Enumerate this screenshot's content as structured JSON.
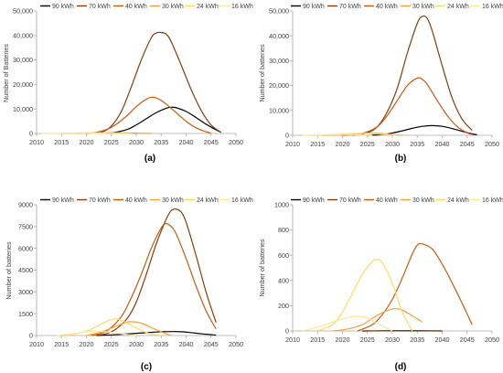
{
  "legend_labels": [
    "90 kWh",
    "70 kWh",
    "40 kWh",
    "30 kWh",
    "24 kWh",
    "16 kWh"
  ],
  "series_colors": [
    "#000000",
    "#843C0C",
    "#C55A11",
    "#F4A13B",
    "#FFD966",
    "#FFE699"
  ],
  "chart_data": [
    {
      "type": "line",
      "panel_label": "(a)",
      "ylabel": "Number of Batteries",
      "xlim": [
        2010,
        2050
      ],
      "ylim": [
        0,
        50000
      ],
      "x_ticks": [
        "2010",
        "2015",
        "2020",
        "2025",
        "2030",
        "2035",
        "2040",
        "2045",
        "2050"
      ],
      "y_ticks": [
        "0",
        "10,000",
        "20,000",
        "30,000",
        "40,000",
        "50,000"
      ],
      "legend_position": "top",
      "series": [
        {
          "name": "90 kWh",
          "x": [
            2020,
            2025,
            2028,
            2030,
            2032,
            2034,
            2036,
            2037,
            2038,
            2040,
            2042,
            2044,
            2046,
            2047
          ],
          "y": [
            0,
            300,
            1500,
            3500,
            6000,
            8500,
            10300,
            10700,
            10500,
            9000,
            6500,
            3800,
            1500,
            500
          ]
        },
        {
          "name": "70 kWh",
          "x": [
            2020,
            2023,
            2025,
            2027,
            2029,
            2031,
            2033,
            2034,
            2035,
            2036,
            2037,
            2039,
            2041,
            2043,
            2045,
            2047
          ],
          "y": [
            0,
            500,
            3000,
            9000,
            19000,
            30000,
            39000,
            41000,
            41200,
            40500,
            37500,
            28000,
            18000,
            9500,
            3500,
            500
          ]
        },
        {
          "name": "40 kWh",
          "x": [
            2018,
            2022,
            2025,
            2028,
            2030,
            2032,
            2033,
            2034,
            2035,
            2036,
            2038,
            2040,
            2042,
            2044,
            2045
          ],
          "y": [
            0,
            500,
            2500,
            7000,
            11000,
            14000,
            14800,
            14500,
            13500,
            12000,
            8500,
            5000,
            2300,
            700,
            200
          ]
        },
        {
          "name": "30 kWh",
          "x": [
            2015,
            2020,
            2023,
            2025,
            2027,
            2029,
            2031,
            2033
          ],
          "y": [
            0,
            100,
            250,
            350,
            300,
            200,
            80,
            0
          ]
        },
        {
          "name": "24 kWh",
          "x": [
            2012,
            2016,
            2019,
            2021,
            2023,
            2026,
            2029
          ],
          "y": [
            0,
            120,
            250,
            300,
            250,
            100,
            0
          ]
        },
        {
          "name": "16 kWh",
          "x": [
            2011,
            2014,
            2017,
            2019,
            2021,
            2024
          ],
          "y": [
            0,
            80,
            150,
            120,
            60,
            0
          ]
        }
      ]
    },
    {
      "type": "line",
      "panel_label": "(b)",
      "ylabel": "Number of batteries",
      "xlim": [
        2010,
        2050
      ],
      "ylim": [
        0,
        50000
      ],
      "x_ticks": [
        "2010",
        "2015",
        "2020",
        "2025",
        "2030",
        "2035",
        "2040",
        "2045",
        "2050"
      ],
      "y_ticks": [
        "0",
        "10,000",
        "20,000",
        "30,000",
        "40,000",
        "50,000"
      ],
      "legend_position": "top",
      "series": [
        {
          "name": "90 kWh",
          "x": [
            2025,
            2028,
            2030,
            2032,
            2034,
            2036,
            2038,
            2040,
            2042,
            2044,
            2046,
            2047
          ],
          "y": [
            0,
            300,
            900,
            1800,
            2800,
            3600,
            3900,
            3600,
            2700,
            1600,
            600,
            200
          ]
        },
        {
          "name": "70 kWh",
          "x": [
            2022,
            2025,
            2027,
            2029,
            2031,
            2033,
            2035,
            2036,
            2037,
            2038,
            2040,
            2042,
            2044,
            2046
          ],
          "y": [
            0,
            1000,
            3500,
            9500,
            19000,
            33000,
            45000,
            47800,
            47000,
            42000,
            28000,
            15000,
            6500,
            2000
          ]
        },
        {
          "name": "40 kWh",
          "x": [
            2020,
            2024,
            2027,
            2029,
            2031,
            2033,
            2035,
            2036,
            2037,
            2039,
            2041,
            2043,
            2045,
            2046
          ],
          "y": [
            0,
            800,
            3500,
            8000,
            14000,
            20000,
            23000,
            22500,
            20500,
            14000,
            8000,
            3500,
            1000,
            400
          ]
        },
        {
          "name": "30 kWh",
          "x": [
            2016,
            2020,
            2024,
            2026,
            2028,
            2030,
            2032
          ],
          "y": [
            0,
            200,
            700,
            900,
            700,
            300,
            0
          ]
        },
        {
          "name": "24 kWh",
          "x": [
            2014,
            2018,
            2022,
            2025,
            2028,
            2031
          ],
          "y": [
            0,
            300,
            700,
            800,
            400,
            0
          ]
        },
        {
          "name": "16 kWh",
          "x": [
            2012,
            2016,
            2020,
            2023,
            2026
          ],
          "y": [
            0,
            200,
            350,
            200,
            0
          ]
        }
      ]
    },
    {
      "type": "line",
      "panel_label": "(c)",
      "ylabel": "Number of batteries",
      "xlim": [
        2010,
        2050
      ],
      "ylim": [
        0,
        9000
      ],
      "x_ticks": [
        "2010",
        "2015",
        "2020",
        "2025",
        "2030",
        "2035",
        "2040",
        "2045",
        "2050"
      ],
      "y_ticks": [
        "0",
        "1500",
        "3000",
        "4500",
        "6000",
        "7500",
        "9000"
      ],
      "legend_position": "top",
      "series": [
        {
          "name": "90 kWh",
          "x": [
            2022,
            2026,
            2030,
            2034,
            2037,
            2039,
            2041,
            2043,
            2046
          ],
          "y": [
            0,
            60,
            150,
            240,
            270,
            260,
            200,
            120,
            30
          ]
        },
        {
          "name": "70 kWh",
          "x": [
            2022,
            2025,
            2028,
            2030,
            2032,
            2034,
            2036,
            2037,
            2038,
            2039,
            2040,
            2042,
            2044,
            2046
          ],
          "y": [
            0,
            250,
            1100,
            2300,
            4200,
            6300,
            8000,
            8600,
            8700,
            8500,
            7800,
            5500,
            3000,
            900
          ]
        },
        {
          "name": "40 kWh",
          "x": [
            2021,
            2024,
            2027,
            2029,
            2031,
            2033,
            2035,
            2036,
            2037,
            2038,
            2040,
            2042,
            2044,
            2046
          ],
          "y": [
            0,
            300,
            1300,
            2600,
            4200,
            6000,
            7400,
            7700,
            7500,
            7000,
            5300,
            3400,
            1700,
            450
          ]
        },
        {
          "name": "30 kWh",
          "x": [
            2020,
            2023,
            2026,
            2028,
            2029,
            2031,
            2033,
            2035,
            2037
          ],
          "y": [
            0,
            250,
            650,
            900,
            950,
            850,
            550,
            250,
            0
          ]
        },
        {
          "name": "24 kWh",
          "x": [
            2016,
            2020,
            2023,
            2025,
            2026,
            2027,
            2029,
            2032,
            2035
          ],
          "y": [
            0,
            300,
            800,
            1100,
            1150,
            1050,
            700,
            200,
            0
          ]
        },
        {
          "name": "16 kWh",
          "x": [
            2014,
            2018,
            2021,
            2024,
            2027,
            2030
          ],
          "y": [
            0,
            150,
            300,
            250,
            120,
            0
          ]
        }
      ]
    },
    {
      "type": "line",
      "panel_label": "(d)",
      "ylabel": "Number of batteries",
      "xlim": [
        2010,
        2050
      ],
      "ylim": [
        0,
        1000
      ],
      "x_ticks": [
        "2010",
        "2015",
        "2020",
        "2025",
        "2030",
        "2035",
        "2040",
        "2045",
        "2050"
      ],
      "y_ticks": [
        "0",
        "200",
        "400",
        "600",
        "800",
        "1000"
      ],
      "legend_position": "top",
      "series": [
        {
          "name": "90 kWh",
          "x": [
            2024,
            2028,
            2032,
            2036,
            2040
          ],
          "y": [
            0,
            1,
            2,
            1,
            0
          ]
        },
        {
          "name": "70 kWh",
          "x": [
            2024,
            2028,
            2032,
            2036,
            2040
          ],
          "y": [
            0,
            1,
            3,
            2,
            0
          ]
        },
        {
          "name": "40 kWh",
          "x": [
            2023,
            2026,
            2028,
            2030,
            2032,
            2034,
            2035,
            2036,
            2038,
            2040,
            2042,
            2044,
            2046
          ],
          "y": [
            0,
            50,
            130,
            250,
            420,
            610,
            680,
            690,
            650,
            530,
            380,
            220,
            50
          ]
        },
        {
          "name": "30 kWh",
          "x": [
            2018,
            2021,
            2024,
            2026,
            2028,
            2030,
            2031,
            2032,
            2034,
            2036
          ],
          "y": [
            0,
            15,
            50,
            100,
            145,
            175,
            175,
            165,
            120,
            70
          ]
        },
        {
          "name": "24 kWh",
          "x": [
            2015,
            2018,
            2020,
            2022,
            2024,
            2026,
            2027,
            2028,
            2030,
            2032,
            2034
          ],
          "y": [
            0,
            50,
            150,
            300,
            450,
            550,
            565,
            540,
            380,
            150,
            0
          ]
        },
        {
          "name": "16 kWh",
          "x": [
            2012,
            2016,
            2019,
            2021,
            2023,
            2025,
            2027,
            2030
          ],
          "y": [
            0,
            40,
            85,
            105,
            115,
            100,
            60,
            0
          ]
        }
      ]
    }
  ]
}
